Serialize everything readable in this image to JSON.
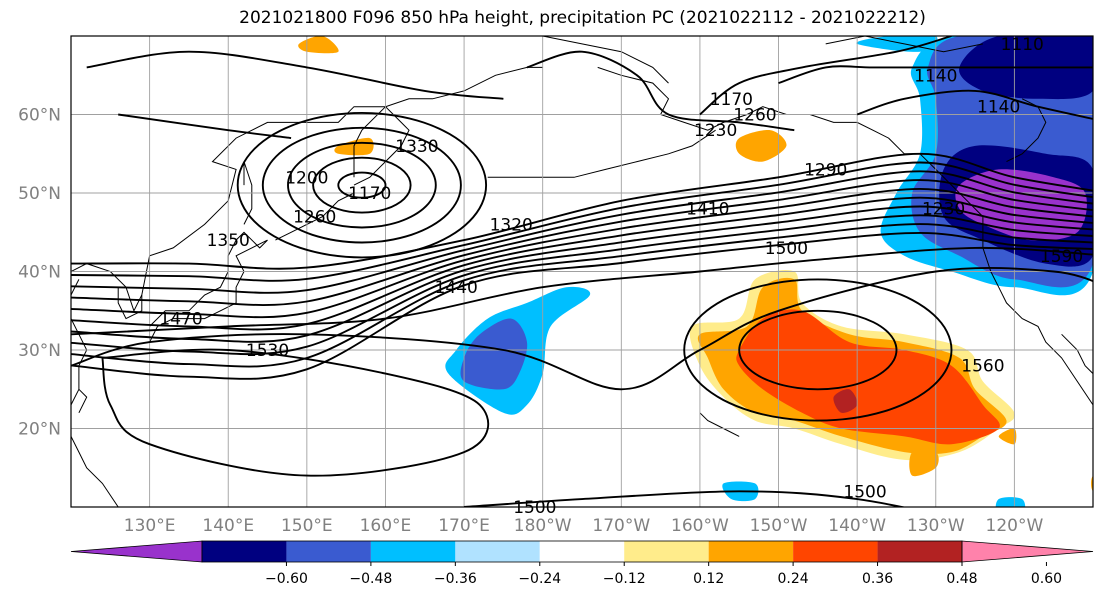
{
  "title": "2021021800 F096 850 hPa height, precipitation PC (2021022112 - 2021022212)",
  "map": {
    "projection": "PlateCarree",
    "lon_range": [
      120,
      250
    ],
    "lat_range": [
      10,
      70
    ],
    "gridlines": true,
    "lat_labels": [
      "20°N",
      "30°N",
      "40°N",
      "50°N",
      "60°N"
    ],
    "lon_labels": [
      "130°E",
      "140°E",
      "150°E",
      "160°E",
      "170°E",
      "180°W",
      "170°W",
      "160°W",
      "150°W",
      "140°W",
      "130°W",
      "120°W"
    ],
    "label_color": "#808080"
  },
  "contour_labels": [
    {
      "text": "1110",
      "lon": 241,
      "lat": 69
    },
    {
      "text": "1140",
      "lon": 230,
      "lat": 65
    },
    {
      "text": "1140",
      "lon": 238,
      "lat": 61
    },
    {
      "text": "1170",
      "lon": 204,
      "lat": 62
    },
    {
      "text": "1170",
      "lon": 158,
      "lat": 50
    },
    {
      "text": "1200",
      "lon": 150,
      "lat": 52
    },
    {
      "text": "1230",
      "lon": 202,
      "lat": 58
    },
    {
      "text": "1230",
      "lon": 231,
      "lat": 48
    },
    {
      "text": "1260",
      "lon": 207,
      "lat": 60
    },
    {
      "text": "1260",
      "lon": 151,
      "lat": 47
    },
    {
      "text": "1290",
      "lon": 216,
      "lat": 53
    },
    {
      "text": "1320",
      "lon": 176,
      "lat": 46
    },
    {
      "text": "1330",
      "lon": 164,
      "lat": 56
    },
    {
      "text": "1350",
      "lon": 140,
      "lat": 44
    },
    {
      "text": "1410",
      "lon": 201,
      "lat": 48
    },
    {
      "text": "1440",
      "lon": 169,
      "lat": 38
    },
    {
      "text": "1470",
      "lon": 134,
      "lat": 34
    },
    {
      "text": "1500",
      "lon": 211,
      "lat": 43
    },
    {
      "text": "1500",
      "lon": 179,
      "lat": 10
    },
    {
      "text": "1500",
      "lon": 221,
      "lat": 12
    },
    {
      "text": "1530",
      "lon": 145,
      "lat": 30
    },
    {
      "text": "1560",
      "lon": 236,
      "lat": 28
    },
    {
      "text": "1590",
      "lon": 246,
      "lat": 42
    }
  ],
  "colorbar": {
    "ticks": [
      "−0.60",
      "−0.48",
      "−0.36",
      "−0.24",
      "−0.12",
      "0.12",
      "0.24",
      "0.36",
      "0.48",
      "0.60"
    ],
    "colors": [
      "#9932cc",
      "#000080",
      "#3a5bd0",
      "#00bfff",
      "#b0e2ff",
      "#ffffff",
      "#ffec8b",
      "#ffa500",
      "#ff4500",
      "#b22222",
      "#ff82ab"
    ],
    "extend": "both"
  }
}
